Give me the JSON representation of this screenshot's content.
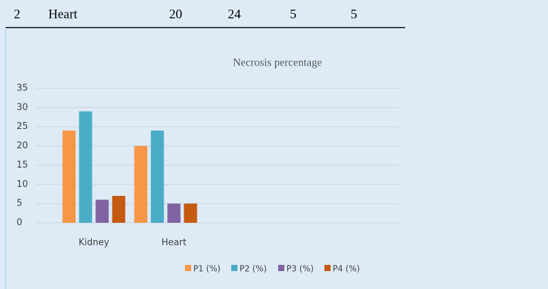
{
  "table": {
    "rows": [
      [
        "2",
        "Heart",
        "20",
        "24",
        "5",
        "5"
      ]
    ]
  },
  "chart_data": {
    "type": "bar",
    "title": "Necrosis percentage",
    "categories": [
      "Kidney",
      "Heart"
    ],
    "series": [
      {
        "name": "P1 (%)",
        "color": "#f79646",
        "values": [
          24,
          20
        ]
      },
      {
        "name": "P2 (%)",
        "color": "#4bacc6",
        "values": [
          29,
          24
        ]
      },
      {
        "name": "P3 (%)",
        "color": "#8064a2",
        "values": [
          6,
          5
        ]
      },
      {
        "name": "P4 (%)",
        "color": "#c55a11",
        "values": [
          7,
          5
        ]
      }
    ],
    "ylim": [
      0,
      35
    ],
    "yticks": [
      0,
      5,
      10,
      15,
      20,
      25,
      30,
      35
    ],
    "grid": true,
    "legend": "bottom"
  }
}
